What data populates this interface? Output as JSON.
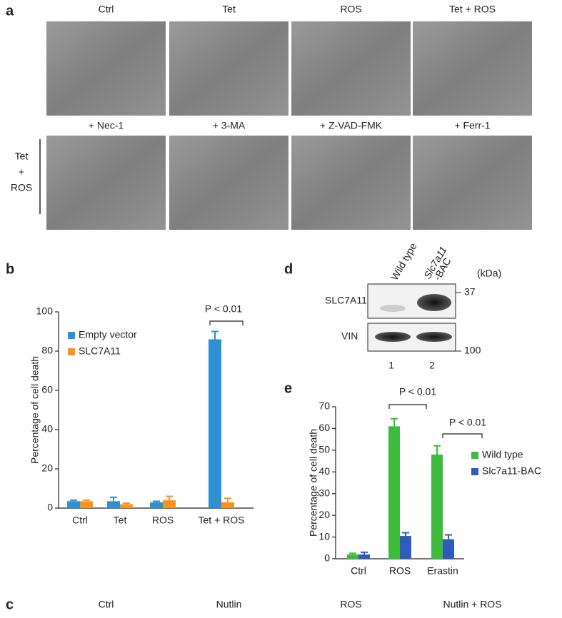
{
  "panel_a": {
    "label": "a",
    "row1": [
      "Ctrl",
      "Tet",
      "ROS",
      "Tet + ROS"
    ],
    "row2": [
      "+ Nec-1",
      "+ 3-MA",
      "+ Z-VAD-FMK",
      "+ Ferr-1"
    ],
    "side_label": [
      "Tet",
      "+",
      "ROS"
    ]
  },
  "panel_b": {
    "label": "b"
  },
  "panel_d": {
    "label": "d",
    "lane_labels": [
      "Wild type",
      "Slc7a11",
      "-BAC"
    ],
    "unit": "(kDa)",
    "rows": [
      "SLC7A11",
      "VIN"
    ],
    "markers": [
      37,
      100
    ],
    "lane_numbers": [
      1,
      2
    ]
  },
  "panel_e": {
    "label": "e"
  },
  "panel_c": {
    "label": "c",
    "captions": [
      "Ctrl",
      "Nutlin",
      "ROS",
      "Nutlin + ROS"
    ]
  },
  "chart_data": [
    {
      "type": "bar",
      "ylabel": "Percentage of cell death",
      "categories": [
        "Ctrl",
        "Tet",
        "ROS",
        "Tet + ROS"
      ],
      "series": [
        {
          "name": "Empty vector",
          "color": "#2f8fd0",
          "values": [
            3.5,
            3.5,
            3,
            86
          ],
          "errors": [
            0.5,
            2,
            0.5,
            4
          ]
        },
        {
          "name": "SLC7A11",
          "color": "#f7941d",
          "values": [
            3.5,
            2,
            4,
            3
          ],
          "errors": [
            0.5,
            0.5,
            2,
            2
          ]
        }
      ],
      "ylim": [
        0,
        100
      ],
      "yticks": [
        0,
        20,
        40,
        60,
        80,
        100
      ],
      "annotations": [
        "P < 0.01"
      ]
    },
    {
      "type": "bar",
      "ylabel": "Percentage of cell death",
      "categories": [
        "Ctrl",
        "ROS",
        "Erastin"
      ],
      "series": [
        {
          "name": "Wild type",
          "color": "#3dbb3d",
          "values": [
            2,
            61,
            48
          ],
          "errors": [
            0.5,
            3.5,
            4
          ]
        },
        {
          "name": "Slc7a11-BAC",
          "color": "#2e5bbd",
          "values": [
            2,
            10.5,
            9
          ],
          "errors": [
            1,
            1.5,
            2
          ]
        }
      ],
      "ylim": [
        0,
        70
      ],
      "yticks": [
        0,
        10,
        20,
        30,
        40,
        50,
        60,
        70
      ],
      "annotations": [
        "P < 0.01",
        "P < 0.01"
      ]
    }
  ]
}
